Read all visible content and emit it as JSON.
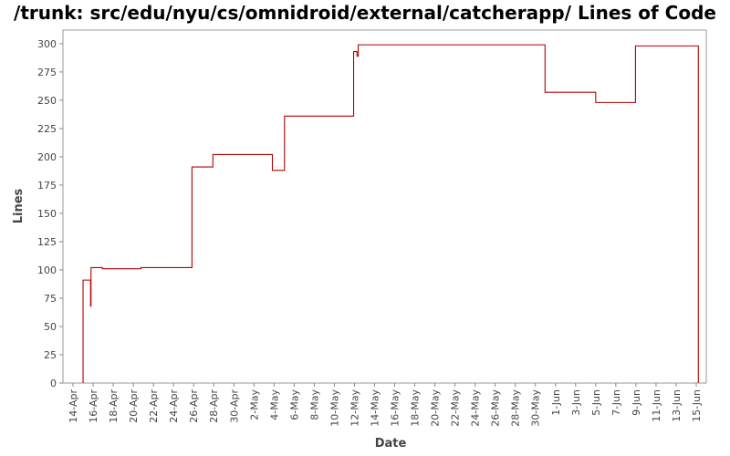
{
  "chart_data": {
    "type": "line",
    "title": "/trunk: src/edu/nyu/cs/omnidroid/external/catcherapp/ Lines of Code",
    "xlabel": "Date",
    "ylabel": "Lines",
    "ylim": [
      0,
      312
    ],
    "xlim": [
      "2009-04-13",
      "2009-06-16"
    ],
    "line_style": "step",
    "grid": false,
    "legend": "none",
    "y_ticks": [
      0,
      25,
      50,
      75,
      100,
      125,
      150,
      175,
      200,
      225,
      250,
      275,
      300
    ],
    "x_ticks": [
      {
        "date": "2009-04-14",
        "label": "14-Apr"
      },
      {
        "date": "2009-04-16",
        "label": "16-Apr"
      },
      {
        "date": "2009-04-18",
        "label": "18-Apr"
      },
      {
        "date": "2009-04-20",
        "label": "20-Apr"
      },
      {
        "date": "2009-04-22",
        "label": "22-Apr"
      },
      {
        "date": "2009-04-24",
        "label": "24-Apr"
      },
      {
        "date": "2009-04-26",
        "label": "26-Apr"
      },
      {
        "date": "2009-04-28",
        "label": "28-Apr"
      },
      {
        "date": "2009-04-30",
        "label": "30-Apr"
      },
      {
        "date": "2009-05-02",
        "label": "2-May"
      },
      {
        "date": "2009-05-04",
        "label": "4-May"
      },
      {
        "date": "2009-05-06",
        "label": "6-May"
      },
      {
        "date": "2009-05-08",
        "label": "8-May"
      },
      {
        "date": "2009-05-10",
        "label": "10-May"
      },
      {
        "date": "2009-05-12",
        "label": "12-May"
      },
      {
        "date": "2009-05-14",
        "label": "14-May"
      },
      {
        "date": "2009-05-16",
        "label": "16-May"
      },
      {
        "date": "2009-05-18",
        "label": "18-May"
      },
      {
        "date": "2009-05-20",
        "label": "20-May"
      },
      {
        "date": "2009-05-22",
        "label": "22-May"
      },
      {
        "date": "2009-05-24",
        "label": "24-May"
      },
      {
        "date": "2009-05-26",
        "label": "26-May"
      },
      {
        "date": "2009-05-28",
        "label": "28-May"
      },
      {
        "date": "2009-05-30",
        "label": "30-May"
      },
      {
        "date": "2009-06-01",
        "label": "1-Jun"
      },
      {
        "date": "2009-06-03",
        "label": "3-Jun"
      },
      {
        "date": "2009-06-05",
        "label": "5-Jun"
      },
      {
        "date": "2009-06-07",
        "label": "7-Jun"
      },
      {
        "date": "2009-06-09",
        "label": "9-Jun"
      },
      {
        "date": "2009-06-11",
        "label": "11-Jun"
      },
      {
        "date": "2009-06-13",
        "label": "13-Jun"
      },
      {
        "date": "2009-06-15",
        "label": "15-Jun"
      }
    ],
    "series": [
      {
        "color": "#b30000",
        "points": [
          {
            "x": "2009-04-15 00:00",
            "y": 0
          },
          {
            "x": "2009-04-15 00:00",
            "y": 91
          },
          {
            "x": "2009-04-15 18:00",
            "y": 91
          },
          {
            "x": "2009-04-15 18:00",
            "y": 68
          },
          {
            "x": "2009-04-15 19:00",
            "y": 68
          },
          {
            "x": "2009-04-15 19:00",
            "y": 102
          },
          {
            "x": "2009-04-16 22:00",
            "y": 102
          },
          {
            "x": "2009-04-16 22:00",
            "y": 101
          },
          {
            "x": "2009-04-20 18:00",
            "y": 101
          },
          {
            "x": "2009-04-20 18:00",
            "y": 102
          },
          {
            "x": "2009-04-25 20:00",
            "y": 102
          },
          {
            "x": "2009-04-25 20:00",
            "y": 191
          },
          {
            "x": "2009-04-27 22:00",
            "y": 191
          },
          {
            "x": "2009-04-27 22:00",
            "y": 202
          },
          {
            "x": "2009-05-03 20:00",
            "y": 202
          },
          {
            "x": "2009-05-03 20:00",
            "y": 188
          },
          {
            "x": "2009-05-05 01:00",
            "y": 188
          },
          {
            "x": "2009-05-05 01:00",
            "y": 236
          },
          {
            "x": "2009-05-11 22:00",
            "y": 236
          },
          {
            "x": "2009-05-11 22:00",
            "y": 293
          },
          {
            "x": "2009-05-12 06:00",
            "y": 293
          },
          {
            "x": "2009-05-12 06:00",
            "y": 289
          },
          {
            "x": "2009-05-12 09:00",
            "y": 289
          },
          {
            "x": "2009-05-12 09:00",
            "y": 299
          },
          {
            "x": "2009-05-30 23:00",
            "y": 299
          },
          {
            "x": "2009-05-30 23:00",
            "y": 257
          },
          {
            "x": "2009-06-05 00:00",
            "y": 257
          },
          {
            "x": "2009-06-05 00:00",
            "y": 248
          },
          {
            "x": "2009-06-08 23:00",
            "y": 248
          },
          {
            "x": "2009-06-08 23:00",
            "y": 298
          },
          {
            "x": "2009-06-15 05:00",
            "y": 298
          },
          {
            "x": "2009-06-15 05:00",
            "y": 0
          }
        ]
      }
    ]
  }
}
